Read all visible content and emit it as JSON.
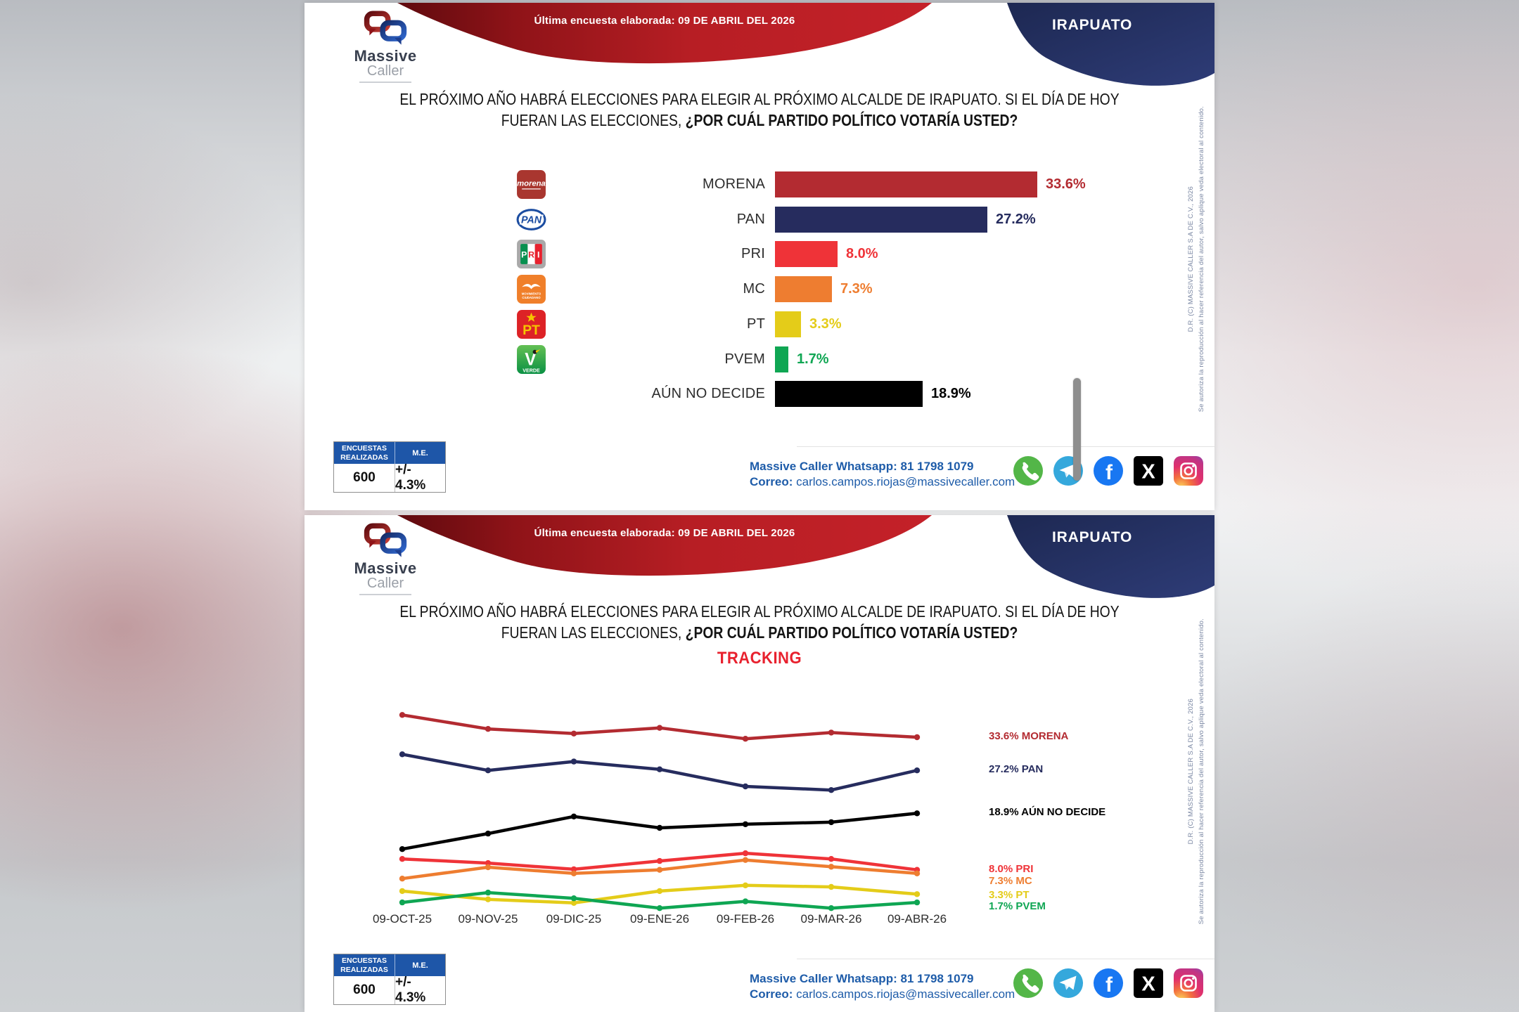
{
  "header": {
    "brand_name_top": "Massive",
    "brand_name_bottom": "Caller",
    "survey_date_label": "Última encuesta elaborada: 09 DE ABRIL DEL 2026",
    "location": "IRAPUATO"
  },
  "question": {
    "line1": "EL PRÓXIMO AÑO HABRÁ ELECCIONES PARA ELEGIR AL PRÓXIMO ALCALDE DE IRAPUATO. SI EL DÍA DE HOY",
    "line2_prefix": "FUERAN LAS ELECCIONES, ",
    "line2_emphasis": "¿POR CUÁL PARTIDO POLÍTICO VOTARÍA USTED?",
    "tracking_label": "TRACKING"
  },
  "stats_table": {
    "col1_header": "ENCUESTAS REALIZADAS",
    "col2_header": "M.E.",
    "col1_value": "600",
    "col2_value": "+/- 4.3%"
  },
  "contact": {
    "whatsapp_label": "Massive Caller Whatsapp:",
    "whatsapp_number": "81 1798 1079",
    "email_label": "Correo:",
    "email_value": "carlos.campos.riojas@massivecaller.com"
  },
  "social_icons": [
    "whatsapp",
    "telegram",
    "facebook",
    "x",
    "instagram"
  ],
  "copyright": {
    "rights_line": "D.R. (C) MASSIVE CALLER S.A DE C.V., 2026",
    "authorization_line": "Se autoriza la reproducción al hacer referencia del autor, salvo aplique veda electoral al contenido."
  },
  "colors": {
    "banner_red": "#A3151B",
    "banner_blue": "#27325F",
    "table_header_blue": "#1E56A8",
    "contact_blue": "#1E5CA9",
    "tracking_red": "#E8212E"
  },
  "chart_data": [
    {
      "type": "bar",
      "orientation": "horizontal",
      "title": "EL PRÓXIMO AÑO HABRÁ ELECCIONES PARA ELEGIR AL PRÓXIMO ALCALDE DE IRAPUATO. SI EL DÍA DE HOY FUERAN LAS ELECCIONES, ¿POR CUÁL PARTIDO POLÍTICO VOTARÍA USTED?",
      "categories": [
        "MORENA",
        "PAN",
        "PRI",
        "MC",
        "PT",
        "PVEM",
        "AÚN NO DECIDE"
      ],
      "values": [
        33.6,
        27.2,
        8.0,
        7.3,
        3.3,
        1.7,
        18.9
      ],
      "value_labels": [
        "33.6%",
        "27.2%",
        "8.0%",
        "7.3%",
        "3.3%",
        "1.7%",
        "18.9%"
      ],
      "colors": [
        "#B32B31",
        "#262C5E",
        "#EF3338",
        "#EE7D30",
        "#E4CC19",
        "#0FA653",
        "#000000"
      ],
      "party_logos": [
        "morena",
        "pan",
        "pri",
        "mc",
        "pt",
        "pvem",
        null
      ],
      "xlim": [
        0,
        40
      ],
      "grid": false
    },
    {
      "type": "line",
      "title": "TRACKING",
      "x": [
        "09-OCT-25",
        "09-NOV-25",
        "09-DIC-25",
        "09-ENE-26",
        "09-FEB-26",
        "09-MAR-26",
        "09-ABR-26"
      ],
      "series": [
        {
          "name": "MORENA",
          "color": "#B32B31",
          "legend": "33.6% MORENA",
          "values": [
            37.9,
            35.2,
            34.3,
            35.4,
            33.3,
            34.5,
            33.6
          ]
        },
        {
          "name": "PAN",
          "color": "#262C5E",
          "legend": "27.2% PAN",
          "values": [
            30.3,
            27.2,
            28.9,
            27.4,
            24.1,
            23.4,
            27.2
          ]
        },
        {
          "name": "AÚN NO DECIDE",
          "color": "#000000",
          "legend": "18.9% AÚN NO DECIDE",
          "values": [
            12.0,
            15.0,
            18.3,
            16.1,
            16.8,
            17.2,
            18.9
          ]
        },
        {
          "name": "PRI",
          "color": "#EF3338",
          "legend": "8.0% PRI",
          "values": [
            10.1,
            9.3,
            8.1,
            9.7,
            11.2,
            10.1,
            8.0
          ]
        },
        {
          "name": "MC",
          "color": "#EE7D30",
          "legend": "7.3% MC",
          "values": [
            6.3,
            8.5,
            7.3,
            8.0,
            9.9,
            8.6,
            7.3
          ]
        },
        {
          "name": "PT",
          "color": "#E4CC19",
          "legend": "3.3% PT",
          "values": [
            3.9,
            2.3,
            1.6,
            3.9,
            5.0,
            4.7,
            3.3
          ]
        },
        {
          "name": "PVEM",
          "color": "#0FA653",
          "legend": "1.7% PVEM",
          "values": [
            1.7,
            3.6,
            2.5,
            0.6,
            1.9,
            0.6,
            1.7
          ]
        }
      ],
      "ylim": [
        0,
        40
      ],
      "grid": false,
      "legend_position": "right"
    }
  ]
}
